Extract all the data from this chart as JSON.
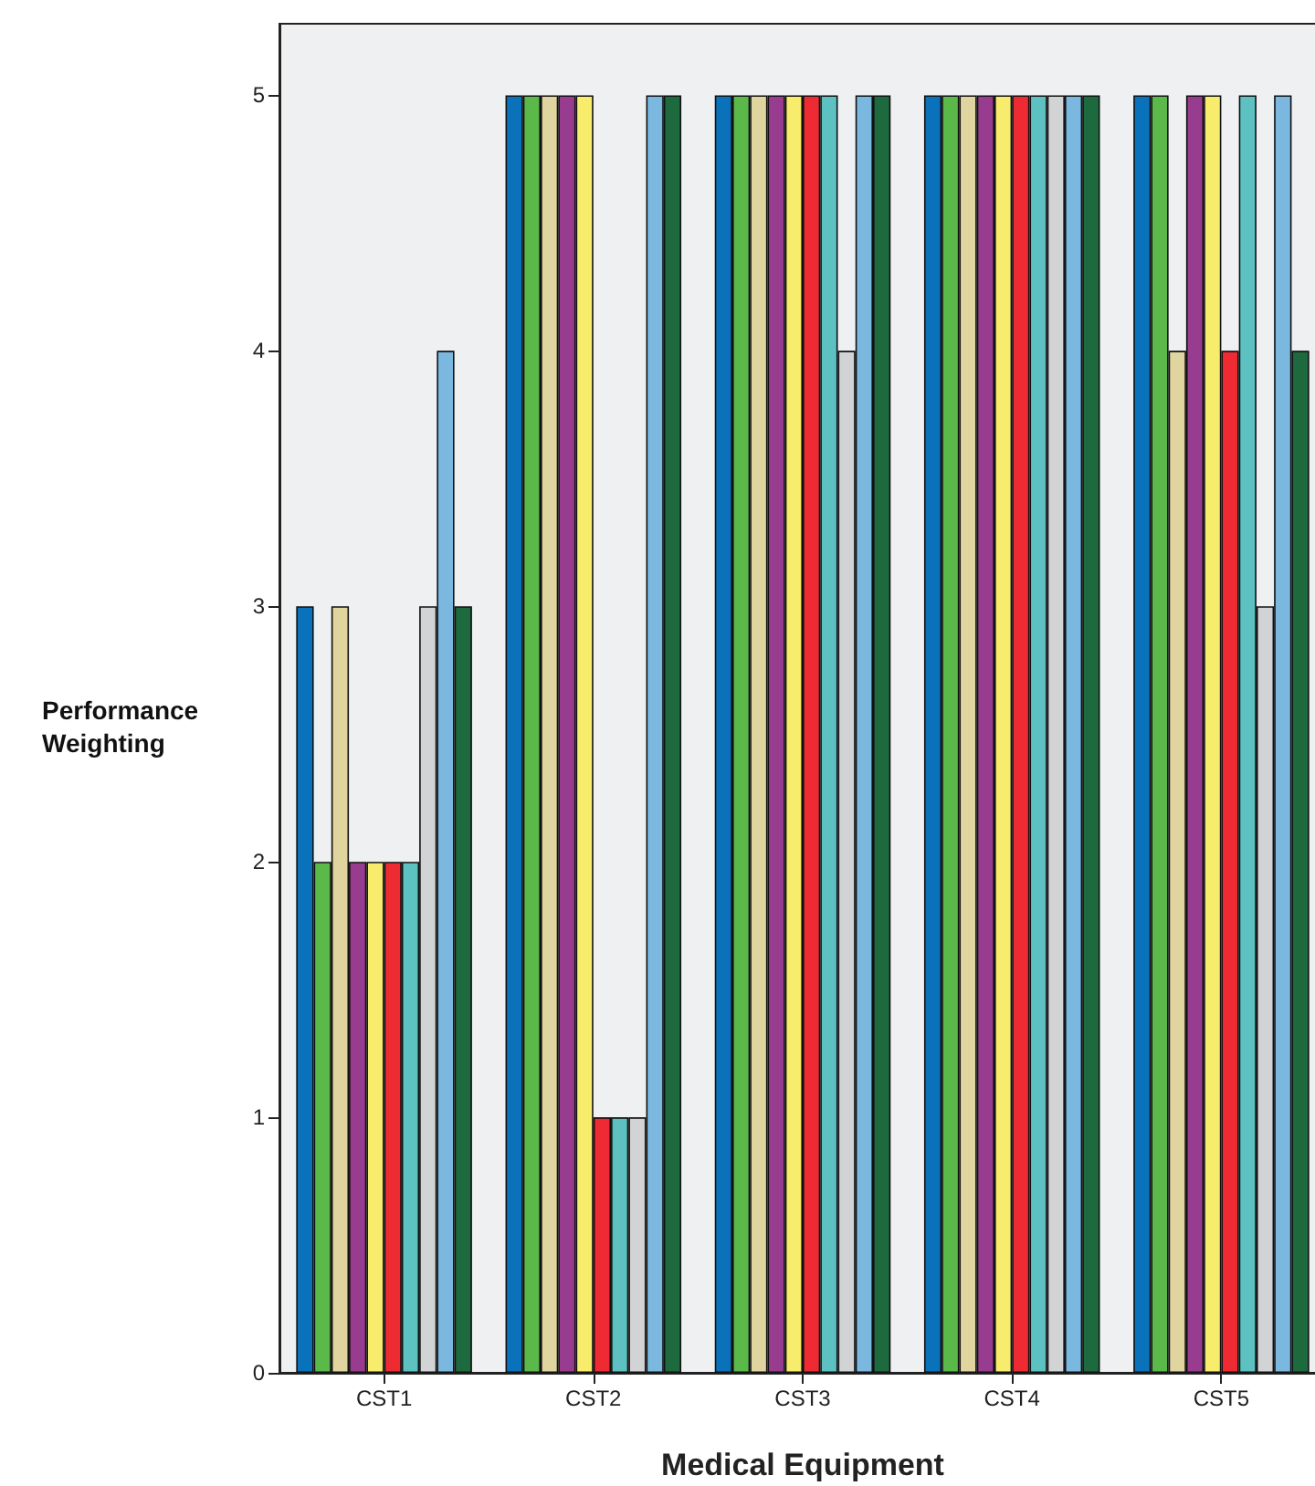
{
  "chart_data": {
    "type": "bar",
    "xlabel": "Medical Equipment",
    "ylabel": "Performance Weighting",
    "categories": [
      "CST1",
      "CST2",
      "CST3",
      "CST4",
      "CST5"
    ],
    "series": [
      {
        "color": "#0a72ba",
        "values": [
          3,
          5,
          5,
          5,
          5
        ]
      },
      {
        "color": "#5bb94a",
        "values": [
          2,
          5,
          5,
          5,
          5
        ]
      },
      {
        "color": "#e1d59f",
        "values": [
          3,
          5,
          5,
          5,
          4
        ]
      },
      {
        "color": "#973c8e",
        "values": [
          2,
          5,
          5,
          5,
          5
        ]
      },
      {
        "color": "#f8ec6c",
        "values": [
          2,
          5,
          5,
          5,
          5
        ]
      },
      {
        "color": "#ee2a32",
        "values": [
          2,
          1,
          5,
          5,
          4
        ]
      },
      {
        "color": "#5dc1c1",
        "values": [
          2,
          1,
          5,
          5,
          5
        ]
      },
      {
        "color": "#d2d3d5",
        "values": [
          3,
          1,
          4,
          5,
          3
        ]
      },
      {
        "color": "#7ab8e0",
        "values": [
          4,
          5,
          5,
          5,
          5
        ]
      },
      {
        "color": "#1d6a3f",
        "values": [
          3,
          5,
          5,
          5,
          4
        ]
      }
    ],
    "ylim": [
      0,
      5.28
    ],
    "yticks": [
      0,
      1,
      2,
      3,
      4,
      5
    ]
  }
}
